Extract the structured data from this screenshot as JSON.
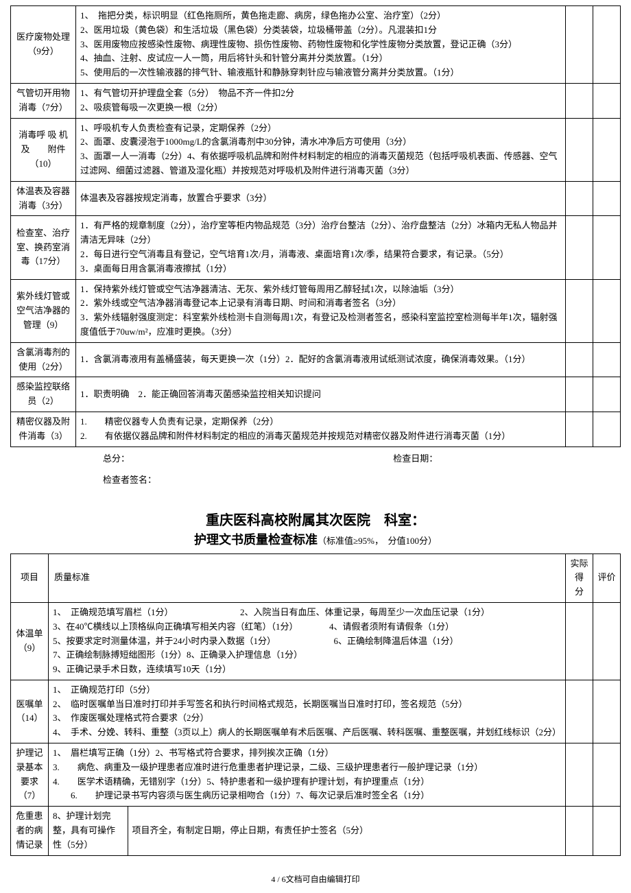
{
  "table1": {
    "rows": [
      {
        "label": "医疗废物处理（9分）",
        "content": "1、　拖把分类，标识明显（红色拖厕所，黄色拖走廊、病房，绿色拖办公室、治疗室）（2分）\n2、医用垃圾（黄色袋）和生活垃圾（黑色袋）分类装袋，垃圾桶带盖（2分）。凡混装扣1分\n3、医用废物应按感染性废物、病理性废物、损伤性废物、药物性废物和化学性废物分类放置，登记正确（3分）\n4、抽血、注射、皮试应一人一筒，用后将针头和针管分离并分类放置。（1分）\n5、使用后的一次性输液器的排气针、输液瓶针和静脉穿刺针应与输液管分离并分类放置。（1分）"
      },
      {
        "label": "气管切开用物消毒（7分）",
        "content": "1、有气管切开护理盘全套（5分）　物品不齐一件扣2分\n2、吸痰管每吸一次更换一根（2分）"
      },
      {
        "label": "消毒呼 吸 机及　　附件（10）",
        "content": "1、呼吸机专人负责检查有记录，定期保养（2分）\n2、面罩、皮囊浸泡于1000mg/L的含氯消毒剂中30分钟，清水冲净后方可使用（3分）\n3、面罩一人一消毒（2分）4、有依据呼吸机品牌和附件材料制定的相应的消毒灭菌规范（包括呼吸机表面、传感器、空气过滤网、细菌过滤器、管道及湿化瓶）并按规范对呼吸机及附件进行消毒灭菌（3分）"
      },
      {
        "label": "体温表及容器消毒（3分）",
        "content": "体温表及容器按规定消毒，放置合乎要求（3分）"
      },
      {
        "label": "检查室、治疗室、换药室消毒（17分）",
        "content": "1．有严格的规章制度（2分），治疗室等柜内物品规范（3分）治疗台整洁（2分）、治疗盘整洁（2分）冰箱内无私人物品并清洁无异味（2分）\n2．每日进行空气消毒且有登记，空气培育1次/月，消毒液、桌面培育1次/季，结果符合要求，有记录。（5分）\n3．桌面每日用含氯消毒液擦拭（1分）"
      },
      {
        "label": "紫外线灯管或空气洁净器的管理（9）",
        "content": "1．保持紫外线灯管或空气洁净器清洁、无灰、紫外线灯管每周用乙醇轻拭1次，以除油垢（3分）\n2．紫外线或空气洁净器消毒登记本上记录有消毒日期、时间和消毒者签名（3分）\n3．紫外线辐射强度测定：科室紫外线检测卡自测每周1次，有登记及检测者签名，感染科室监控室检测每半年1次，辐射强度值低于70uw/m²，应准时更换。（3分）"
      },
      {
        "label": "含氯消毒剂的使用（2分）",
        "content": "1．含氯消毒液用有盖桶盛装，每天更换一次（1分）2．配好的含氯消毒液用试纸测试浓度，确保消毒效果。（1分）"
      },
      {
        "label": "感染监控联络员（2）",
        "content": "1．职责明确　2．能正确回答消毒灭菌感染监控相关知识提问"
      },
      {
        "label": "精密仪器及附件消毒（3）",
        "content": "1.　　精密仪器专人负责有记录，定期保养（2分）\n2.　　有依据仪器品牌和附件材料制定的相应的消毒灭菌规范并按规范对精密仪器及附件进行消毒灭菌（1分）"
      }
    ]
  },
  "footer": {
    "total": "总分：",
    "checkDate": "检查日期：",
    "signer": "检查者签名："
  },
  "section2": {
    "title": "重庆医科高校附属其次医院　科室：",
    "subtitle": "护理文书质量检查标准",
    "subtitleNote": "（标准值≥95%，　分值100分）",
    "header": {
      "item": "项目",
      "standard": "质量标准",
      "score": "实际得 分",
      "eval": "评价"
    },
    "rows": [
      {
        "label": "体温单（9）",
        "content": "1、　正确规范填写眉栏（1分）　　　　　　　　2、入院当日有血压、体重记录，每周至少一次血压记录（1分）\n3、在40℃横线以上顶格纵向正确填写相关内容（红笔）（1分）　　　　4、请假者须附有请假条（1分）\n5、按要求定时测量体温，并于24小时内录入数据（1分）　　　　　　　6、正确绘制降温后体温（1分）\n7、正确绘制脉搏短绌图形（1分）8、正确录入护理信息（1分）\n9、正确记录手术日数，连续填写10天（1分）"
      },
      {
        "label": "医嘱单（14）",
        "content": "1、　正确规范打印（5分）\n2、　临时医嘱单当日准时打印并手写签名和执行时间格式规范，长期医嘱当日准时打印，签名规范（5分）\n3、　作废医嘱处理格式符合要求（2分）\n4、　手术、分娩、转科、重整（3页以上）病人的长期医嘱单有术后医嘱、产后医嘱、转科医嘱、重整医嘱，并划红线标识（2分）"
      },
      {
        "label": "护理记录基本要求（7）",
        "content": "1、　眉栏填写正确（1分）2、书写格式符合要求，排列挨次正确（1分）\n3.　　病危、病重及一级护理患者应准时进行危重患者护理记录，二级、三级护理患者行一般护理记录（1分）\n4.　　医学术语精确，无错别字（1分）5、特护患者和一级护理有护理计划，有护理重点（1分）\n　　6.　　护理记录书写内容须与医生病历记录相吻合（1分）7、每次记录后准时签全名（1分）"
      }
    ],
    "splitRow": {
      "label": "危重患者的病情记录",
      "sublabel": "8、护理计划完整，具有可操作性（5分）",
      "content": "项目齐全，有制定日期，停止日期，有责任护士签名（5分）"
    }
  },
  "pageFoot": "4 / 6文档可自由编辑打印"
}
